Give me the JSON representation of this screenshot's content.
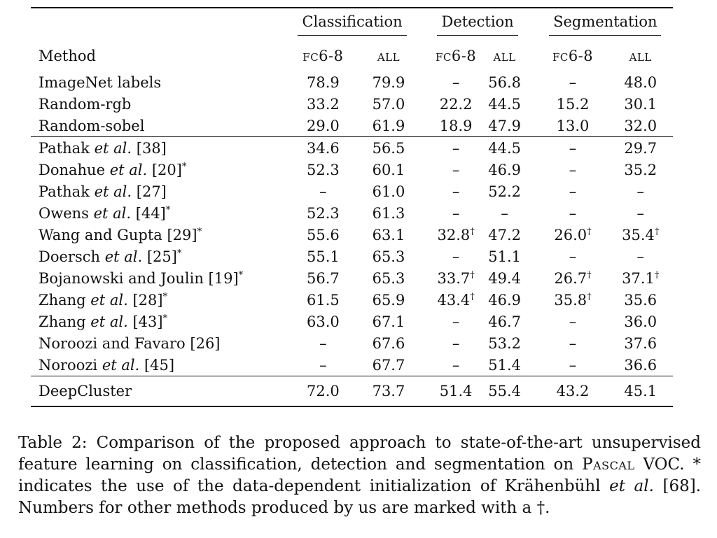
{
  "table": {
    "groups": [
      "Classification",
      "Detection",
      "Segmentation"
    ],
    "method_header": "Method",
    "subheaders": [
      "fc6-8",
      "all",
      "fc6-8",
      "all",
      "fc6-8",
      "all"
    ],
    "sections": [
      [
        {
          "method": "ImageNet labels",
          "cells": [
            {
              "v": "78.9"
            },
            {
              "v": "79.9"
            },
            {
              "v": "–"
            },
            {
              "v": "56.8"
            },
            {
              "v": "–"
            },
            {
              "v": "48.0"
            }
          ]
        },
        {
          "method": "Random-rgb",
          "cells": [
            {
              "v": "33.2"
            },
            {
              "v": "57.0"
            },
            {
              "v": "22.2"
            },
            {
              "v": "44.5"
            },
            {
              "v": "15.2"
            },
            {
              "v": "30.1"
            }
          ]
        },
        {
          "method": "Random-sobel",
          "cells": [
            {
              "v": "29.0"
            },
            {
              "v": "61.9"
            },
            {
              "v": "18.9"
            },
            {
              "v": "47.9"
            },
            {
              "v": "13.0"
            },
            {
              "v": "32.0"
            }
          ]
        }
      ],
      [
        {
          "method": "Pathak",
          "etal": true,
          "ref": "[38]",
          "cells": [
            {
              "v": "34.6"
            },
            {
              "v": "56.5"
            },
            {
              "v": "–"
            },
            {
              "v": "44.5"
            },
            {
              "v": "–"
            },
            {
              "v": "29.7"
            }
          ]
        },
        {
          "method": "Donahue",
          "etal": true,
          "ref": "[20]",
          "star": true,
          "cells": [
            {
              "v": "52.3"
            },
            {
              "v": "60.1"
            },
            {
              "v": "–"
            },
            {
              "v": "46.9"
            },
            {
              "v": "–"
            },
            {
              "v": "35.2"
            }
          ]
        },
        {
          "method": "Pathak",
          "etal": true,
          "ref": "[27]",
          "cells": [
            {
              "v": "–"
            },
            {
              "v": "61.0"
            },
            {
              "v": "–"
            },
            {
              "v": "52.2"
            },
            {
              "v": "–"
            },
            {
              "v": "–"
            }
          ]
        },
        {
          "method": "Owens",
          "etal": true,
          "ref": "[44]",
          "star": true,
          "cells": [
            {
              "v": "52.3"
            },
            {
              "v": "61.3"
            },
            {
              "v": "–"
            },
            {
              "v": "–"
            },
            {
              "v": "–"
            },
            {
              "v": "–"
            }
          ]
        },
        {
          "method": "Wang and Gupta",
          "ref": "[29]",
          "star": true,
          "cells": [
            {
              "v": "55.6"
            },
            {
              "v": "63.1"
            },
            {
              "v": "32.8",
              "dagger": true
            },
            {
              "v": "47.2"
            },
            {
              "v": "26.0",
              "dagger": true
            },
            {
              "v": "35.4",
              "dagger": true
            }
          ]
        },
        {
          "method": "Doersch",
          "etal": true,
          "ref": "[25]",
          "star": true,
          "cells": [
            {
              "v": "55.1"
            },
            {
              "v": "65.3"
            },
            {
              "v": "–"
            },
            {
              "v": "51.1"
            },
            {
              "v": "–"
            },
            {
              "v": "–"
            }
          ]
        },
        {
          "method": "Bojanowski and Joulin",
          "ref": "[19]",
          "star": true,
          "cells": [
            {
              "v": "56.7"
            },
            {
              "v": "65.3"
            },
            {
              "v": "33.7",
              "dagger": true
            },
            {
              "v": "49.4"
            },
            {
              "v": "26.7",
              "dagger": true
            },
            {
              "v": "37.1",
              "dagger": true
            }
          ]
        },
        {
          "method": "Zhang",
          "etal": true,
          "ref": "[28]",
          "star": true,
          "cells": [
            {
              "v": "61.5"
            },
            {
              "v": "65.9"
            },
            {
              "v": "43.4",
              "dagger": true
            },
            {
              "v": "46.9"
            },
            {
              "v": "35.8",
              "dagger": true
            },
            {
              "v": "35.6"
            }
          ]
        },
        {
          "method": "Zhang",
          "etal": true,
          "ref": "[43]",
          "star": true,
          "cells": [
            {
              "v": "63.0"
            },
            {
              "v": "67.1"
            },
            {
              "v": "–"
            },
            {
              "v": "46.7"
            },
            {
              "v": "–"
            },
            {
              "v": "36.0"
            }
          ]
        },
        {
          "method": "Noroozi and Favaro",
          "ref": "[26]",
          "cells": [
            {
              "v": "–"
            },
            {
              "v": "67.6"
            },
            {
              "v": "–"
            },
            {
              "v": "53.2"
            },
            {
              "v": "–"
            },
            {
              "v": "37.6"
            }
          ]
        },
        {
          "method": "Noroozi",
          "etal": true,
          "ref": "[45]",
          "cells": [
            {
              "v": "–"
            },
            {
              "v": "67.7"
            },
            {
              "v": "–"
            },
            {
              "v": "51.4"
            },
            {
              "v": "–"
            },
            {
              "v": "36.6"
            }
          ]
        }
      ],
      [
        {
          "method": "DeepCluster",
          "bold": true,
          "cells": [
            {
              "v": "72.0"
            },
            {
              "v": "73.7"
            },
            {
              "v": "51.4"
            },
            {
              "v": "55.4"
            },
            {
              "v": "43.2"
            },
            {
              "v": "45.1"
            }
          ]
        }
      ]
    ],
    "etal_text": "et al.",
    "star_mark": "*",
    "dagger_mark": "†"
  },
  "caption": {
    "p1": "Table 2: Comparison of the proposed approach to state-of-the-art unsupervised feature learning on classification, detection and segmentation on ",
    "pascal": "Pascal",
    "p2": " VOC. * indicates the use of the data-dependent initialization of Krähenbühl ",
    "etal": "et al.",
    "p3": " [68]. Numbers for other methods produced by us are marked with a †."
  }
}
